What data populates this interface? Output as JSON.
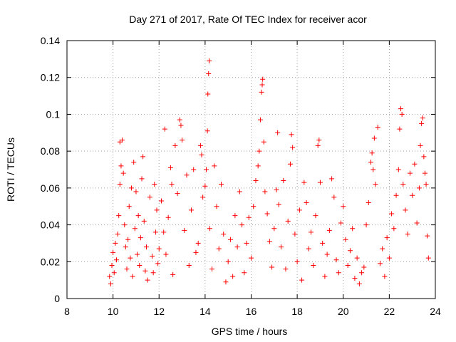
{
  "chart_data": {
    "type": "scatter",
    "title": "Day 271 of 2017, Rate Of TEC Index for receiver acor",
    "xlabel": "GPS time / hours",
    "ylabel": "ROTI / TECUs",
    "xlim": [
      8,
      24
    ],
    "ylim": [
      0,
      0.14
    ],
    "x_ticks": [
      "8",
      "10",
      "12",
      "14",
      "16",
      "18",
      "20",
      "22",
      "24"
    ],
    "y_ticks": [
      "0",
      "0.02",
      "0.04",
      "0.06",
      "0.08",
      "0.1",
      "0.12",
      "0.14"
    ],
    "grid": true,
    "marker": "plus",
    "marker_color": "#ff0000",
    "series": [
      {
        "name": "",
        "points": [
          [
            9.85,
            0.012
          ],
          [
            9.9,
            0.008
          ],
          [
            9.95,
            0.018
          ],
          [
            10.0,
            0.025
          ],
          [
            10.05,
            0.014
          ],
          [
            10.1,
            0.03
          ],
          [
            10.15,
            0.021
          ],
          [
            10.2,
            0.035
          ],
          [
            10.25,
            0.045
          ],
          [
            10.3,
            0.062
          ],
          [
            10.3,
            0.085
          ],
          [
            10.35,
            0.072
          ],
          [
            10.4,
            0.086
          ],
          [
            10.45,
            0.068
          ],
          [
            10.5,
            0.04
          ],
          [
            10.55,
            0.028
          ],
          [
            10.6,
            0.016
          ],
          [
            10.65,
            0.032
          ],
          [
            10.7,
            0.05
          ],
          [
            10.75,
            0.022
          ],
          [
            10.8,
            0.06
          ],
          [
            10.85,
            0.012
          ],
          [
            10.9,
            0.074
          ],
          [
            10.95,
            0.038
          ],
          [
            11.0,
            0.058
          ],
          [
            11.05,
            0.024
          ],
          [
            11.1,
            0.045
          ],
          [
            11.15,
            0.018
          ],
          [
            11.2,
            0.033
          ],
          [
            11.25,
            0.065
          ],
          [
            11.3,
            0.077
          ],
          [
            11.35,
            0.042
          ],
          [
            11.4,
            0.015
          ],
          [
            11.45,
            0.028
          ],
          [
            11.5,
            0.01
          ],
          [
            11.6,
            0.055
          ],
          [
            11.7,
            0.023
          ],
          [
            11.75,
            0.014
          ],
          [
            11.8,
            0.062
          ],
          [
            11.85,
            0.036
          ],
          [
            11.9,
            0.048
          ],
          [
            11.95,
            0.019
          ],
          [
            12.0,
            0.027
          ],
          [
            12.1,
            0.053
          ],
          [
            12.2,
            0.036
          ],
          [
            12.25,
            0.092
          ],
          [
            12.3,
            0.024
          ],
          [
            12.4,
            0.044
          ],
          [
            12.5,
            0.071
          ],
          [
            12.55,
            0.062
          ],
          [
            12.6,
            0.013
          ],
          [
            12.7,
            0.083
          ],
          [
            12.8,
            0.057
          ],
          [
            12.9,
            0.097
          ],
          [
            12.95,
            0.094
          ],
          [
            13.0,
            0.086
          ],
          [
            13.1,
            0.037
          ],
          [
            13.2,
            0.067
          ],
          [
            13.3,
            0.018
          ],
          [
            13.4,
            0.048
          ],
          [
            13.5,
            0.07
          ],
          [
            13.6,
            0.025
          ],
          [
            13.7,
            0.03
          ],
          [
            13.8,
            0.083
          ],
          [
            13.85,
            0.078
          ],
          [
            13.9,
            0.055
          ],
          [
            14.0,
            0.061
          ],
          [
            14.05,
            0.07
          ],
          [
            14.1,
            0.091
          ],
          [
            14.12,
            0.111
          ],
          [
            14.15,
            0.122
          ],
          [
            14.18,
            0.129
          ],
          [
            14.2,
            0.038
          ],
          [
            14.3,
            0.016
          ],
          [
            14.4,
            0.072
          ],
          [
            14.5,
            0.05
          ],
          [
            14.6,
            0.027
          ],
          [
            14.7,
            0.062
          ],
          [
            14.8,
            0.035
          ],
          [
            14.9,
            0.009
          ],
          [
            15.0,
            0.02
          ],
          [
            15.1,
            0.032
          ],
          [
            15.2,
            0.012
          ],
          [
            15.3,
            0.045
          ],
          [
            15.4,
            0.028
          ],
          [
            15.5,
            0.058
          ],
          [
            15.6,
            0.04
          ],
          [
            15.7,
            0.014
          ],
          [
            15.8,
            0.03
          ],
          [
            15.9,
            0.044
          ],
          [
            16.0,
            0.022
          ],
          [
            16.1,
            0.05
          ],
          [
            16.2,
            0.064
          ],
          [
            16.3,
            0.072
          ],
          [
            16.35,
            0.08
          ],
          [
            16.4,
            0.097
          ],
          [
            16.45,
            0.112
          ],
          [
            16.48,
            0.116
          ],
          [
            16.5,
            0.119
          ],
          [
            16.55,
            0.085
          ],
          [
            16.6,
            0.058
          ],
          [
            16.7,
            0.046
          ],
          [
            16.8,
            0.031
          ],
          [
            16.9,
            0.017
          ],
          [
            17.0,
            0.038
          ],
          [
            17.1,
            0.059
          ],
          [
            17.15,
            0.09
          ],
          [
            17.2,
            0.051
          ],
          [
            17.3,
            0.028
          ],
          [
            17.4,
            0.064
          ],
          [
            17.5,
            0.016
          ],
          [
            17.6,
            0.042
          ],
          [
            17.7,
            0.073
          ],
          [
            17.75,
            0.089
          ],
          [
            17.8,
            0.082
          ],
          [
            17.9,
            0.035
          ],
          [
            18.0,
            0.02
          ],
          [
            18.1,
            0.048
          ],
          [
            18.2,
            0.01
          ],
          [
            18.3,
            0.063
          ],
          [
            18.4,
            0.052
          ],
          [
            18.5,
            0.027
          ],
          [
            18.6,
            0.036
          ],
          [
            18.7,
            0.018
          ],
          [
            18.8,
            0.045
          ],
          [
            18.9,
            0.083
          ],
          [
            18.95,
            0.086
          ],
          [
            19.0,
            0.063
          ],
          [
            19.1,
            0.03
          ],
          [
            19.2,
            0.012
          ],
          [
            19.3,
            0.024
          ],
          [
            19.4,
            0.037
          ],
          [
            19.5,
            0.065
          ],
          [
            19.6,
            0.055
          ],
          [
            19.7,
            0.021
          ],
          [
            19.8,
            0.014
          ],
          [
            19.9,
            0.041
          ],
          [
            20.0,
            0.05
          ],
          [
            20.1,
            0.032
          ],
          [
            20.2,
            0.018
          ],
          [
            20.3,
            0.026
          ],
          [
            20.4,
            0.038
          ],
          [
            20.5,
            0.011
          ],
          [
            20.6,
            0.022
          ],
          [
            20.7,
            0.008
          ],
          [
            20.8,
            0.014
          ],
          [
            20.9,
            0.017
          ],
          [
            21.0,
            0.04
          ],
          [
            21.1,
            0.052
          ],
          [
            21.2,
            0.074
          ],
          [
            21.25,
            0.079
          ],
          [
            21.3,
            0.07
          ],
          [
            21.35,
            0.087
          ],
          [
            21.4,
            0.062
          ],
          [
            21.5,
            0.093
          ],
          [
            21.6,
            0.019
          ],
          [
            21.7,
            0.027
          ],
          [
            21.8,
            0.012
          ],
          [
            21.9,
            0.033
          ],
          [
            22.0,
            0.022
          ],
          [
            22.1,
            0.046
          ],
          [
            22.2,
            0.038
          ],
          [
            22.3,
            0.056
          ],
          [
            22.4,
            0.07
          ],
          [
            22.45,
            0.092
          ],
          [
            22.5,
            0.103
          ],
          [
            22.55,
            0.1
          ],
          [
            22.6,
            0.062
          ],
          [
            22.7,
            0.048
          ],
          [
            22.8,
            0.035
          ],
          [
            22.9,
            0.068
          ],
          [
            23.0,
            0.056
          ],
          [
            23.1,
            0.073
          ],
          [
            23.2,
            0.041
          ],
          [
            23.3,
            0.06
          ],
          [
            23.35,
            0.083
          ],
          [
            23.4,
            0.095
          ],
          [
            23.45,
            0.098
          ],
          [
            23.5,
            0.077
          ],
          [
            23.55,
            0.068
          ],
          [
            23.6,
            0.062
          ],
          [
            23.65,
            0.034
          ],
          [
            23.7,
            0.022
          ]
        ]
      }
    ]
  }
}
